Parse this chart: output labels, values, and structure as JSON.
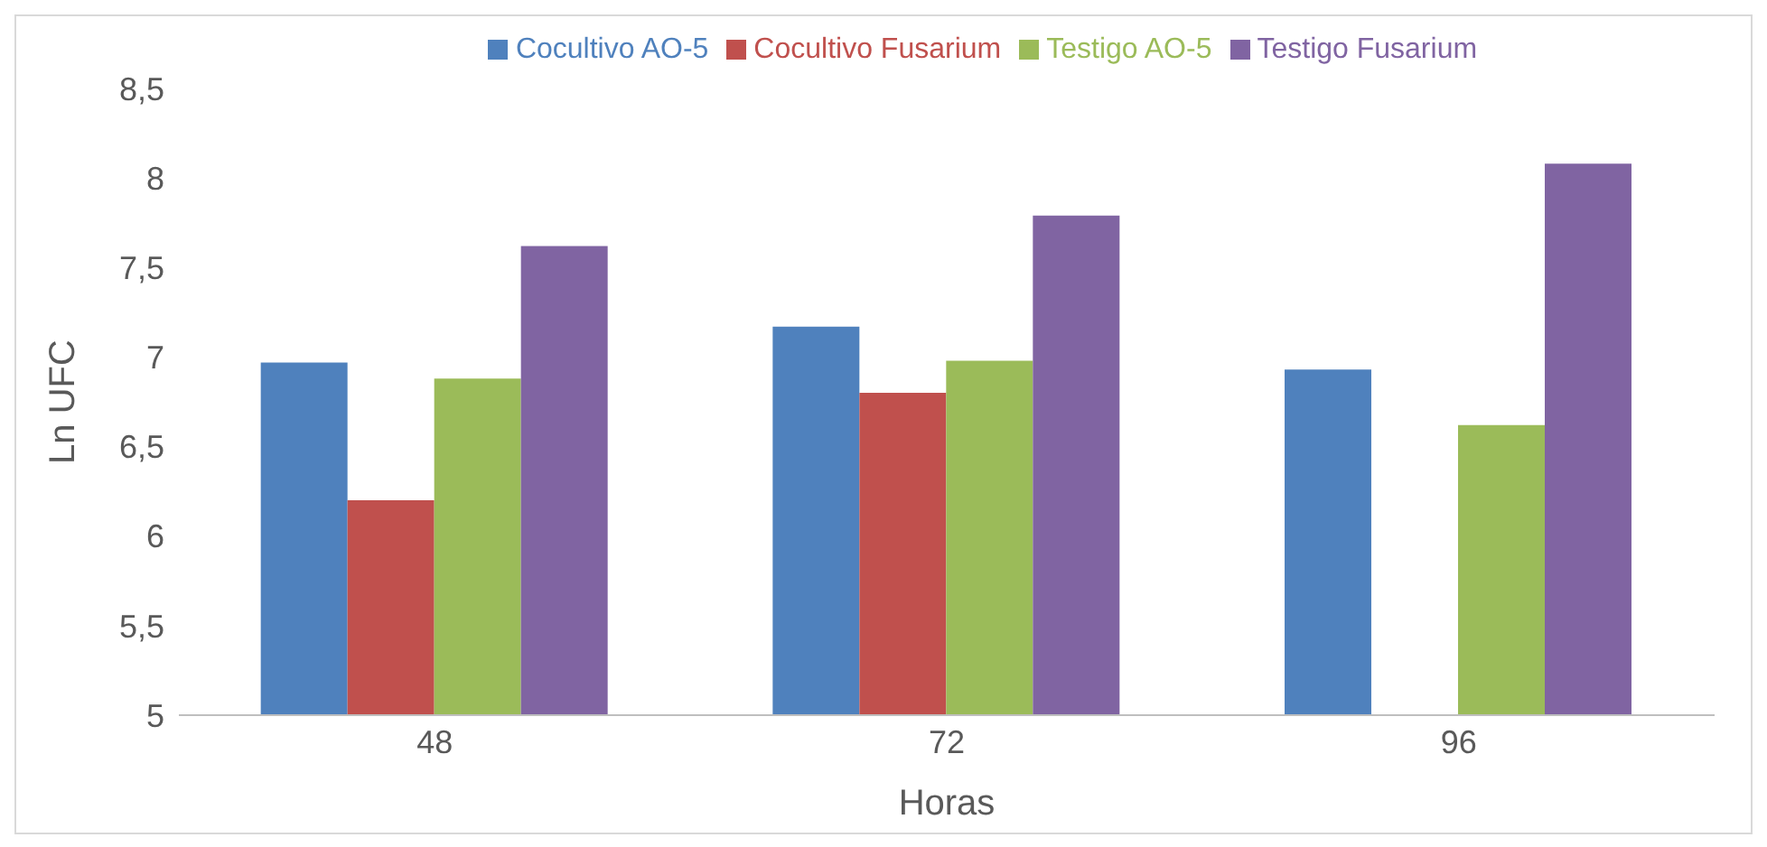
{
  "chart_data": {
    "type": "bar",
    "xlabel": "Horas",
    "ylabel": "Ln UFC",
    "categories": [
      "48",
      "72",
      "96"
    ],
    "series": [
      {
        "name": "Cocultivo AO-5",
        "color": "#4f81bd",
        "values": [
          6.97,
          7.17,
          6.93
        ]
      },
      {
        "name": "Cocultivo Fusarium",
        "color": "#c0504d",
        "values": [
          6.2,
          6.8,
          null
        ]
      },
      {
        "name": "Testigo AO-5",
        "color": "#9bbb59",
        "values": [
          6.88,
          6.98,
          6.62
        ]
      },
      {
        "name": "Testigo Fusarium",
        "color": "#8064a2",
        "values": [
          7.62,
          7.79,
          8.08
        ]
      }
    ],
    "ylim": [
      5,
      8.5
    ],
    "yticks": [
      5,
      {
        "value": 5.5,
        "label": "5,5"
      },
      6,
      {
        "value": 6.5,
        "label": "6,5"
      },
      7,
      {
        "value": 7.5,
        "label": "7,5"
      },
      8,
      {
        "value": 8.5,
        "label": "8,5"
      }
    ],
    "grid": false,
    "legend": "top"
  }
}
